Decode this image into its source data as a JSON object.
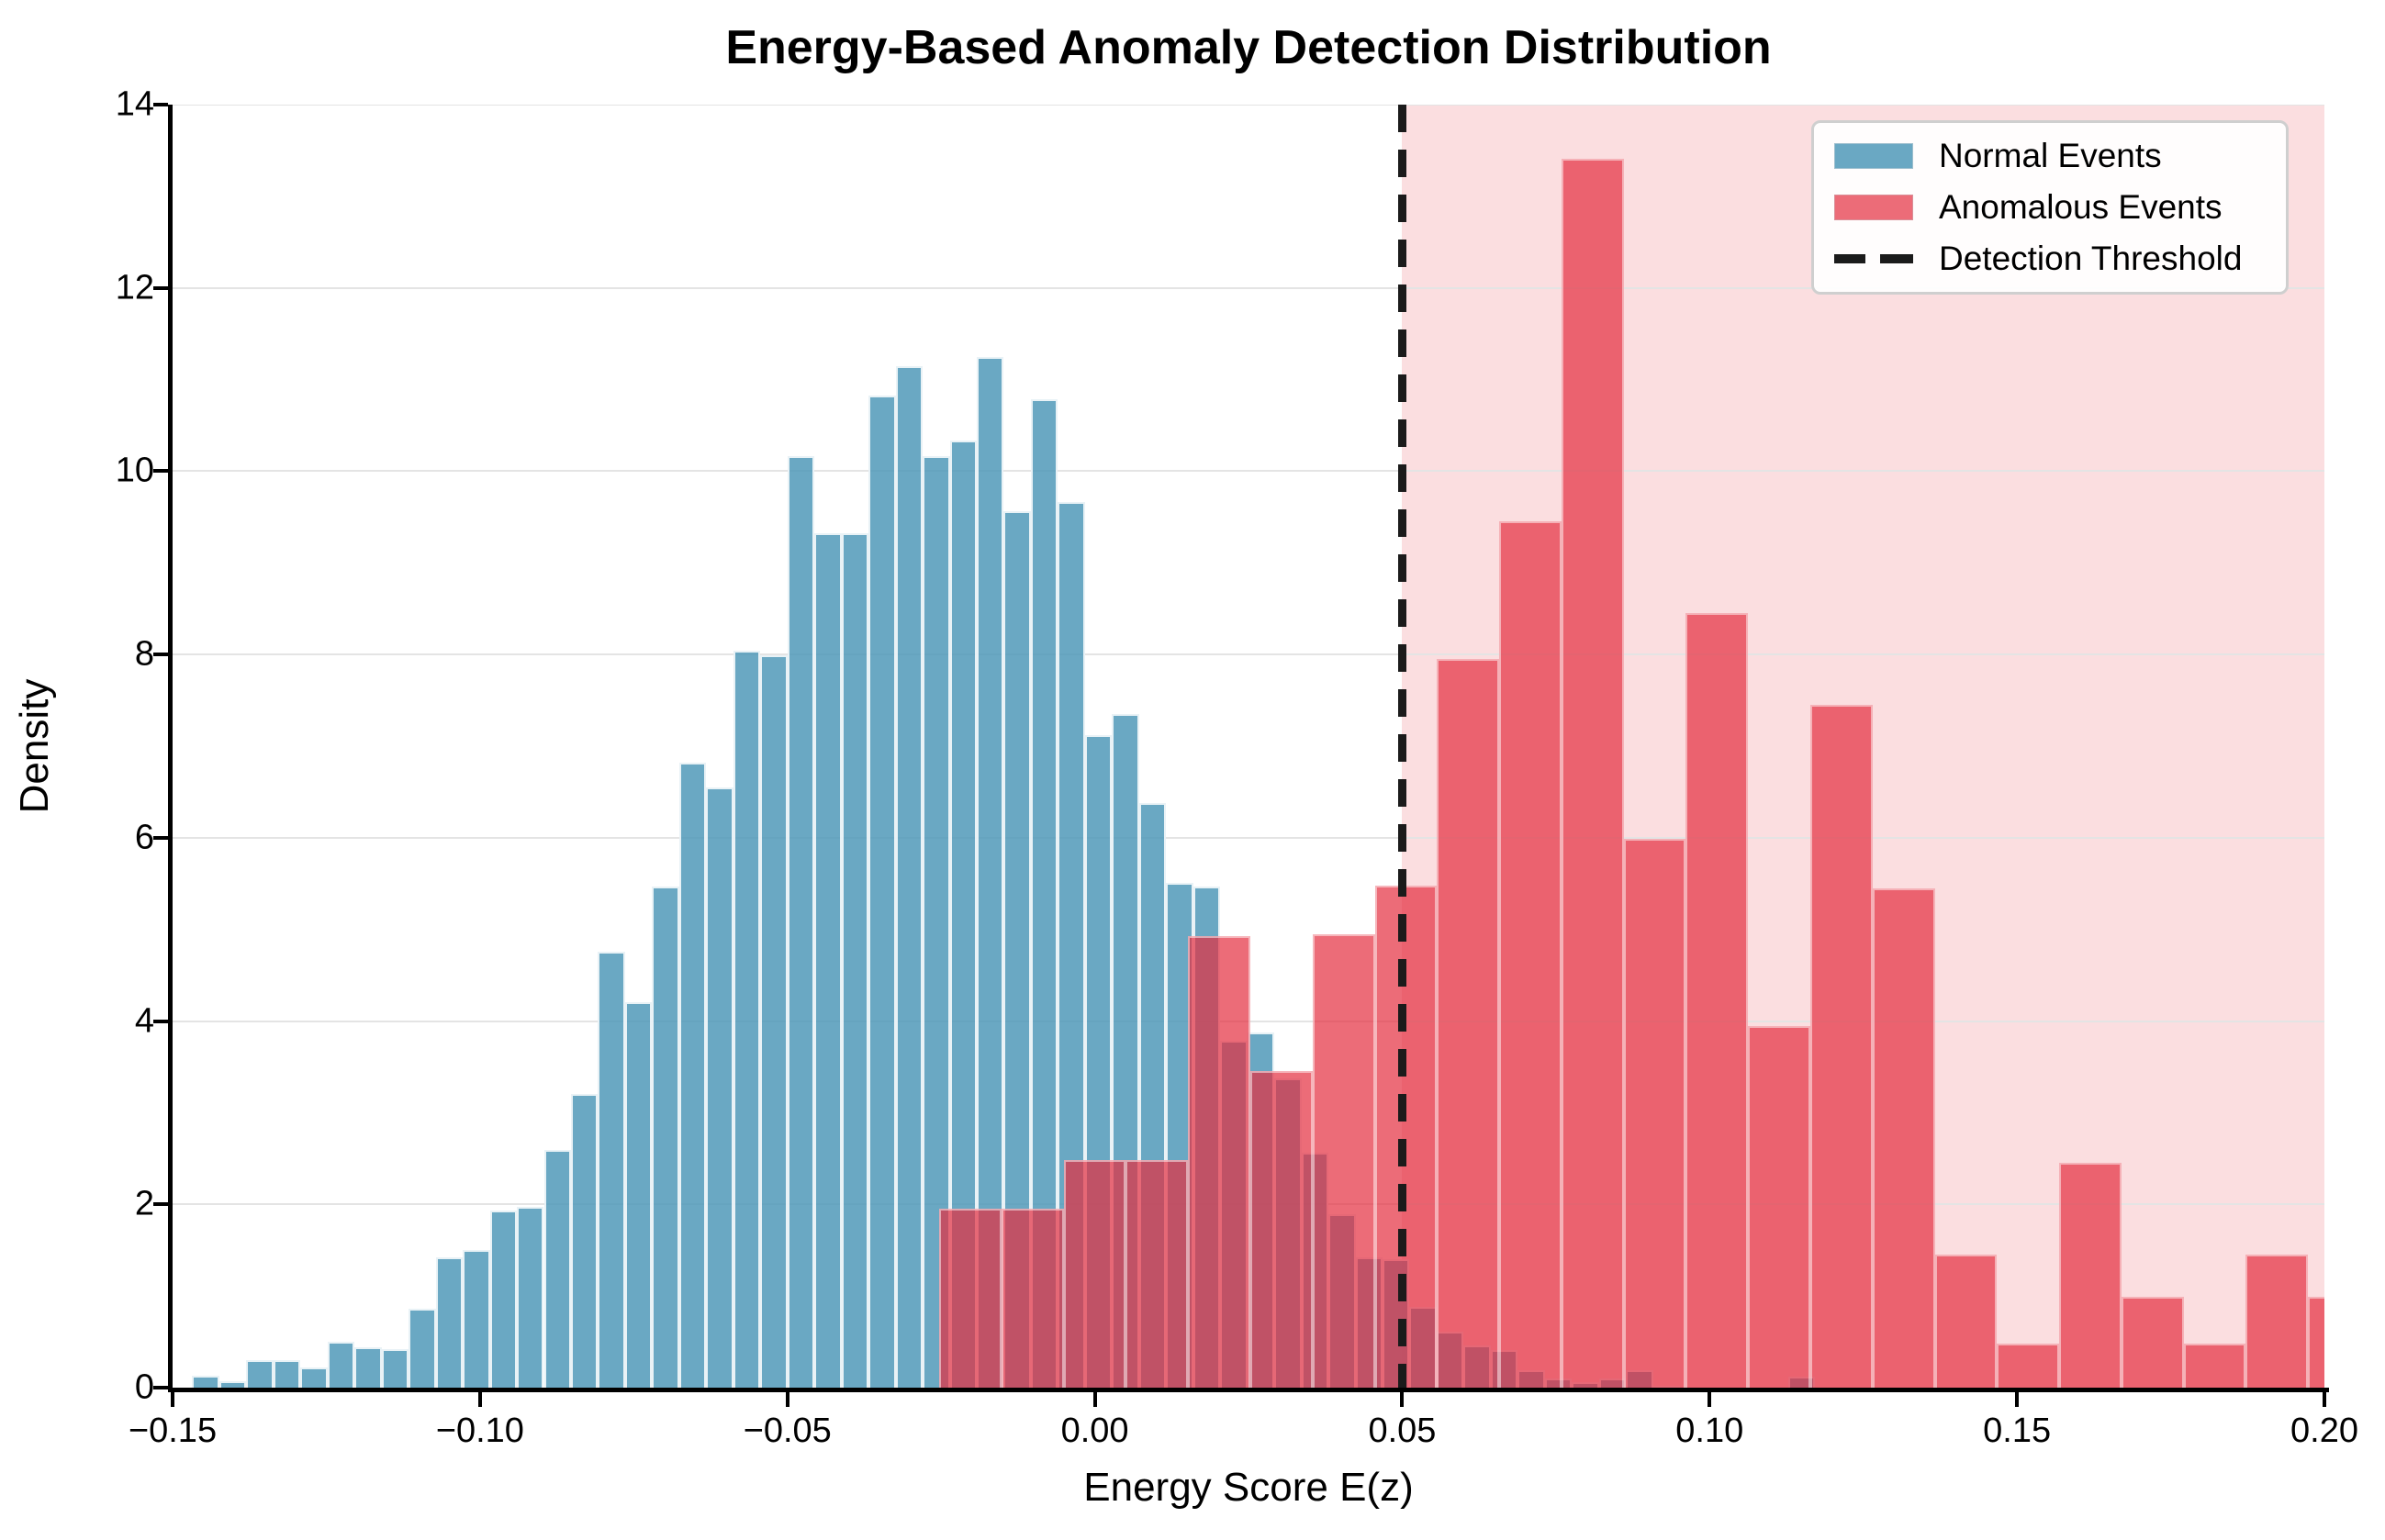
{
  "title": "Energy-Based Anomaly Detection Distribution",
  "chart_data": {
    "type": "bar",
    "subtype": "overlaid-density-histograms",
    "title": "Energy-Based Anomaly Detection Distribution",
    "xlabel": "Energy Score E(z)",
    "ylabel": "Density",
    "xlim": [
      -0.15,
      0.2
    ],
    "ylim": [
      0,
      14
    ],
    "grid": true,
    "x_ticks": [
      -0.15,
      -0.1,
      -0.05,
      0.0,
      0.05,
      0.1,
      0.15,
      0.2
    ],
    "x_tick_labels": [
      "−0.15",
      "−0.10",
      "−0.05",
      "0.00",
      "0.05",
      "0.10",
      "0.15",
      "0.20"
    ],
    "y_ticks": [
      0,
      2,
      4,
      6,
      8,
      10,
      12,
      14
    ],
    "y_tick_labels": [
      "0",
      "2",
      "4",
      "6",
      "8",
      "10",
      "12",
      "14"
    ],
    "threshold": {
      "value": 0.05,
      "label": "Detection Threshold",
      "style": "dashed",
      "color": "#1b1b1b"
    },
    "shaded_region": {
      "from": 0.05,
      "to": 0.2,
      "color": "#fbdce1"
    },
    "legend": {
      "position": "upper right",
      "entries": [
        {
          "label": "Normal Events",
          "color": "#6AA8C3",
          "kind": "patch"
        },
        {
          "label": "Anomalous Events",
          "color": "#EC6C78",
          "kind": "patch"
        },
        {
          "label": "Detection Threshold",
          "color": "#1b1b1b",
          "kind": "dashed-line"
        }
      ]
    },
    "series": [
      {
        "name": "Normal Events",
        "color": "#6AA8C3",
        "bin_start": -0.1468,
        "bin_width": 0.0044,
        "densities": [
          0.13,
          0.07,
          0.3,
          0.3,
          0.22,
          0.5,
          0.44,
          0.42,
          0.86,
          1.42,
          1.5,
          1.93,
          1.97,
          2.59,
          3.2,
          4.76,
          4.21,
          5.47,
          6.82,
          6.55,
          8.04,
          7.99,
          10.16,
          9.32,
          9.32,
          10.83,
          11.15,
          10.16,
          10.33,
          11.25,
          9.56,
          10.79,
          9.66,
          7.12,
          7.35,
          6.38,
          5.51,
          5.47,
          3.79,
          3.88,
          3.37,
          2.56,
          1.89,
          1.42,
          1.4,
          0.88,
          0.61,
          0.46,
          0.41,
          0.19,
          0.1,
          0.06,
          0.1,
          0.19,
          0.02,
          0,
          0,
          0,
          0,
          0.12,
          0
        ]
      },
      {
        "name": "Anomalous Events",
        "color": "#EC6C78",
        "bin_start": -0.0253,
        "bin_width": 0.01012,
        "densities": [
          1.95,
          1.95,
          2.48,
          2.48,
          4.93,
          3.45,
          4.95,
          5.48,
          7.95,
          9.45,
          13.41,
          5.99,
          8.45,
          3.95,
          7.45,
          5.45,
          1.45,
          0.48,
          2.45,
          0.99,
          0.48,
          1.45,
          0.99
        ]
      }
    ]
  }
}
